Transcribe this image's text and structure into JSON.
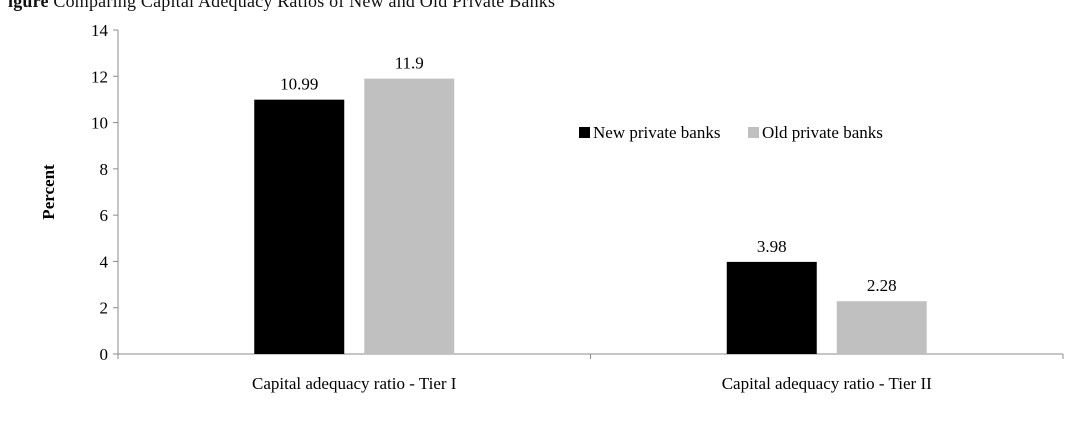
{
  "caption": {
    "prefix": "igure",
    "text": "Comparing Capital Adequacy Ratios of New and Old Private Banks"
  },
  "chart_data": {
    "type": "bar",
    "title": "",
    "xlabel": "",
    "ylabel": "Percent",
    "ylim": [
      0,
      14
    ],
    "yticks": [
      0,
      2,
      4,
      6,
      8,
      10,
      12,
      14
    ],
    "grid": false,
    "legend_position": "right",
    "categories": [
      "Capital adequacy ratio - Tier I",
      "Capital adequacy ratio - Tier II"
    ],
    "series": [
      {
        "name": "New private banks",
        "color": "#000000",
        "values": [
          10.99,
          3.98
        ],
        "labels": [
          "10.99",
          "3.98"
        ]
      },
      {
        "name": "Old private banks",
        "color": "#c0c0c0",
        "values": [
          11.9,
          2.28
        ],
        "labels": [
          "11.9",
          "2.28"
        ]
      }
    ]
  }
}
